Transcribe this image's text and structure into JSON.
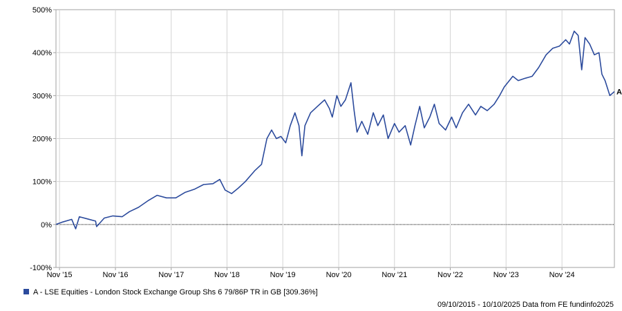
{
  "chart_data": {
    "type": "line",
    "y_ticks": [
      {
        "value": 500,
        "label": "500%"
      },
      {
        "value": 400,
        "label": "400%"
      },
      {
        "value": 300,
        "label": "300%"
      },
      {
        "value": 200,
        "label": "200%"
      },
      {
        "value": 100,
        "label": "100%"
      },
      {
        "value": 0,
        "label": "0%"
      },
      {
        "value": -100,
        "label": "-100%"
      }
    ],
    "x_ticks": [
      {
        "value": "2015-11-01",
        "label": "Nov '15"
      },
      {
        "value": "2016-11-01",
        "label": "Nov '16"
      },
      {
        "value": "2017-11-01",
        "label": "Nov '17"
      },
      {
        "value": "2018-11-01",
        "label": "Nov '18"
      },
      {
        "value": "2019-11-01",
        "label": "Nov '19"
      },
      {
        "value": "2020-11-01",
        "label": "Nov '20"
      },
      {
        "value": "2021-11-01",
        "label": "Nov '21"
      },
      {
        "value": "2022-11-01",
        "label": "Nov '22"
      },
      {
        "value": "2023-11-01",
        "label": "Nov '23"
      },
      {
        "value": "2024-11-01",
        "label": "Nov '24"
      }
    ],
    "ylim": [
      -100,
      500
    ],
    "xlim": [
      "2015-10-09",
      "2025-10-10"
    ],
    "grid": true,
    "series": [
      {
        "name": "A - LSE Equities - London Stock Exchange Group Shs 6 79/86P TR in GB [309.36%]",
        "marker_label": "A",
        "color": "#2b4a9c",
        "points": [
          [
            "2015-10-09",
            0
          ],
          [
            "2015-11-15",
            5
          ],
          [
            "2016-01-20",
            12
          ],
          [
            "2016-02-15",
            -10
          ],
          [
            "2016-03-10",
            18
          ],
          [
            "2016-06-24",
            8
          ],
          [
            "2016-07-01",
            -5
          ],
          [
            "2016-08-20",
            15
          ],
          [
            "2016-10-15",
            20
          ],
          [
            "2016-12-15",
            18
          ],
          [
            "2017-02-01",
            30
          ],
          [
            "2017-04-01",
            40
          ],
          [
            "2017-06-01",
            55
          ],
          [
            "2017-08-01",
            68
          ],
          [
            "2017-10-01",
            62
          ],
          [
            "2017-12-01",
            62
          ],
          [
            "2018-02-01",
            75
          ],
          [
            "2018-04-01",
            82
          ],
          [
            "2018-06-01",
            93
          ],
          [
            "2018-08-01",
            95
          ],
          [
            "2018-09-15",
            105
          ],
          [
            "2018-10-20",
            80
          ],
          [
            "2018-12-01",
            72
          ],
          [
            "2019-01-15",
            85
          ],
          [
            "2019-03-01",
            100
          ],
          [
            "2019-05-01",
            125
          ],
          [
            "2019-06-15",
            140
          ],
          [
            "2019-07-20",
            200
          ],
          [
            "2019-08-20",
            220
          ],
          [
            "2019-09-20",
            200
          ],
          [
            "2019-10-20",
            205
          ],
          [
            "2019-11-20",
            190
          ],
          [
            "2019-12-20",
            230
          ],
          [
            "2020-01-20",
            260
          ],
          [
            "2020-02-15",
            230
          ],
          [
            "2020-03-05",
            160
          ],
          [
            "2020-03-25",
            230
          ],
          [
            "2020-05-01",
            260
          ],
          [
            "2020-06-15",
            275
          ],
          [
            "2020-08-01",
            290
          ],
          [
            "2020-09-01",
            270
          ],
          [
            "2020-09-20",
            250
          ],
          [
            "2020-10-20",
            300
          ],
          [
            "2020-11-15",
            275
          ],
          [
            "2020-12-15",
            290
          ],
          [
            "2021-01-20",
            330
          ],
          [
            "2021-02-10",
            265
          ],
          [
            "2021-03-01",
            215
          ],
          [
            "2021-04-01",
            240
          ],
          [
            "2021-05-10",
            210
          ],
          [
            "2021-06-15",
            260
          ],
          [
            "2021-07-15",
            230
          ],
          [
            "2021-08-20",
            255
          ],
          [
            "2021-09-20",
            200
          ],
          [
            "2021-11-01",
            235
          ],
          [
            "2021-12-01",
            215
          ],
          [
            "2022-01-10",
            230
          ],
          [
            "2022-02-15",
            185
          ],
          [
            "2022-03-15",
            230
          ],
          [
            "2022-04-15",
            275
          ],
          [
            "2022-05-15",
            225
          ],
          [
            "2022-06-20",
            250
          ],
          [
            "2022-07-20",
            280
          ],
          [
            "2022-08-20",
            235
          ],
          [
            "2022-10-01",
            220
          ],
          [
            "2022-11-10",
            250
          ],
          [
            "2022-12-10",
            225
          ],
          [
            "2023-01-20",
            260
          ],
          [
            "2023-03-01",
            280
          ],
          [
            "2023-04-15",
            255
          ],
          [
            "2023-05-20",
            275
          ],
          [
            "2023-07-01",
            265
          ],
          [
            "2023-08-15",
            280
          ],
          [
            "2023-09-20",
            300
          ],
          [
            "2023-10-20",
            320
          ],
          [
            "2023-12-15",
            345
          ],
          [
            "2024-01-20",
            335
          ],
          [
            "2024-03-01",
            340
          ],
          [
            "2024-04-20",
            345
          ],
          [
            "2024-06-01",
            365
          ],
          [
            "2024-07-20",
            395
          ],
          [
            "2024-09-01",
            410
          ],
          [
            "2024-10-15",
            415
          ],
          [
            "2024-11-25",
            430
          ],
          [
            "2024-12-20",
            420
          ],
          [
            "2025-01-20",
            450
          ],
          [
            "2025-02-15",
            440
          ],
          [
            "2025-03-10",
            360
          ],
          [
            "2025-04-01",
            435
          ],
          [
            "2025-05-01",
            420
          ],
          [
            "2025-06-01",
            395
          ],
          [
            "2025-07-01",
            400
          ],
          [
            "2025-07-20",
            350
          ],
          [
            "2025-08-10",
            335
          ],
          [
            "2025-09-10",
            300
          ],
          [
            "2025-10-10",
            309.36
          ]
        ]
      }
    ]
  },
  "legend": {
    "swatch_color": "#2b4a9c",
    "label": "A - LSE Equities - London Stock Exchange Group Shs 6 79/86P TR in GB [309.36%]"
  },
  "footer": "09/10/2015 - 10/10/2025 Data from FE fundinfo2025"
}
